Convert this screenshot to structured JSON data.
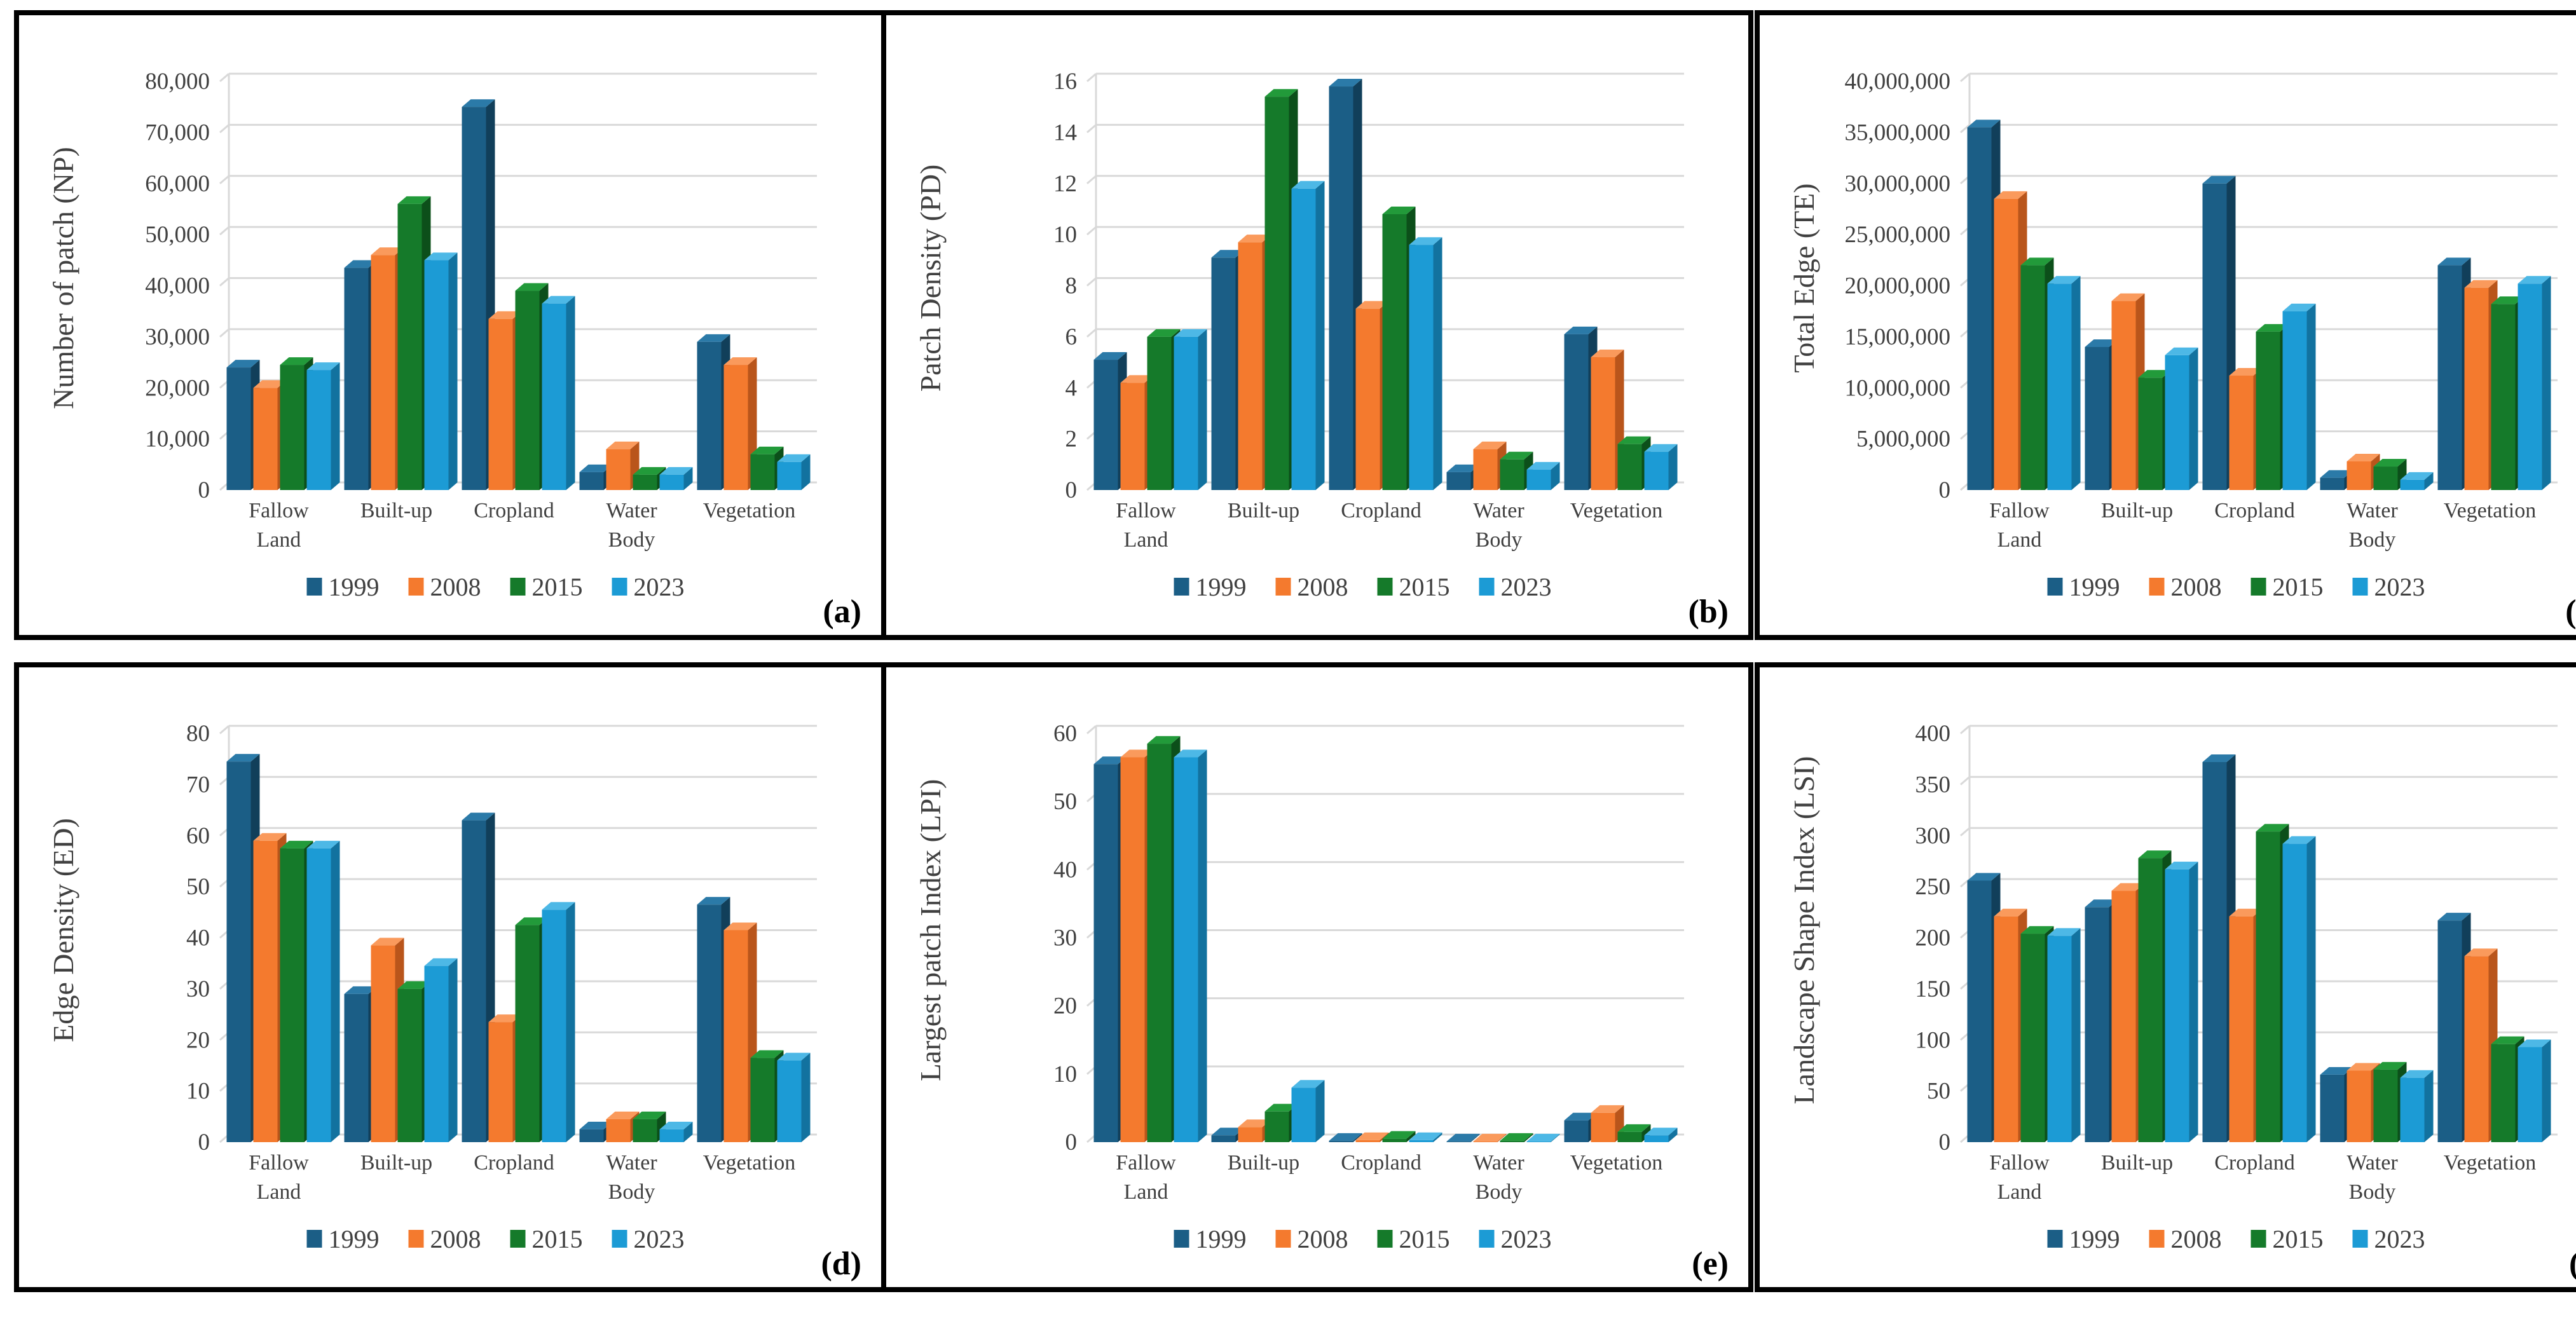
{
  "series_names": [
    "1999",
    "2008",
    "2015",
    "2023"
  ],
  "colors": {
    "1999": {
      "front": "#1B5E86",
      "side": "#113F5A",
      "top": "#2B7AA8"
    },
    "2008": {
      "front": "#F47A2E",
      "side": "#B9551B",
      "top": "#FA9A5C"
    },
    "2015": {
      "front": "#157A2A",
      "side": "#0C4F1A",
      "top": "#229A3A"
    },
    "2023": {
      "front": "#1C9BD5",
      "side": "#12729F",
      "top": "#4DB8E6"
    }
  },
  "chart_data": [
    {
      "type": "bar",
      "tag": "(a)",
      "ylabel": "Number of patch (NP)",
      "ylim": [
        0,
        80000
      ],
      "ytick_step": 10000,
      "yticks": [
        "0",
        "10,000",
        "20,000",
        "30,000",
        "40,000",
        "50,000",
        "60,000",
        "70,000",
        "80,000"
      ],
      "categories": [
        "Fallow Land",
        "Built-up",
        "Cropland",
        "Water Body",
        "Vegetation"
      ],
      "category_lines": [
        [
          "Fallow",
          "Land"
        ],
        [
          "Built-up"
        ],
        [
          "Cropland"
        ],
        [
          "Water",
          "Body"
        ],
        [
          "Vegetation"
        ]
      ],
      "series": [
        {
          "name": "1999",
          "values": [
            24000,
            43500,
            75000,
            3500,
            29000
          ]
        },
        {
          "name": "2008",
          "values": [
            20000,
            46000,
            33500,
            8000,
            24500
          ]
        },
        {
          "name": "2015",
          "values": [
            24500,
            56000,
            39000,
            3000,
            7000
          ]
        },
        {
          "name": "2023",
          "values": [
            23500,
            45000,
            36500,
            3000,
            5500
          ]
        }
      ]
    },
    {
      "type": "bar",
      "tag": "(b)",
      "ylabel": "Patch Density (PD)",
      "ylim": [
        0,
        16
      ],
      "ytick_step": 2,
      "yticks": [
        "0",
        "2",
        "4",
        "6",
        "8",
        "10",
        "12",
        "14",
        "16"
      ],
      "categories": [
        "Fallow Land",
        "Built-up",
        "Cropland",
        "Water Body",
        "Vegetation"
      ],
      "category_lines": [
        [
          "Fallow",
          "Land"
        ],
        [
          "Built-up"
        ],
        [
          "Cropland"
        ],
        [
          "Water",
          "Body"
        ],
        [
          "Vegetation"
        ]
      ],
      "series": [
        {
          "name": "1999",
          "values": [
            5.1,
            9.1,
            15.8,
            0.7,
            6.1
          ]
        },
        {
          "name": "2008",
          "values": [
            4.2,
            9.7,
            7.1,
            1.6,
            5.2
          ]
        },
        {
          "name": "2015",
          "values": [
            6.0,
            15.4,
            10.8,
            1.2,
            1.8
          ]
        },
        {
          "name": "2023",
          "values": [
            6.0,
            11.8,
            9.6,
            0.8,
            1.5
          ]
        }
      ]
    },
    {
      "type": "bar",
      "tag": "(c)",
      "ylabel": "Total Edge  (TE)",
      "ylim": [
        0,
        40000000
      ],
      "ytick_step": 5000000,
      "yticks": [
        "0",
        "5,000,000",
        "10,000,000",
        "15,000,000",
        "20,000,000",
        "25,000,000",
        "30,000,000",
        "35,000,000",
        "40,000,000"
      ],
      "categories": [
        "Fallow Land",
        "Built-up",
        "Cropland",
        "Water Body",
        "Vegetation"
      ],
      "category_lines": [
        [
          "Fallow",
          "Land"
        ],
        [
          "Built-up"
        ],
        [
          "Cropland"
        ],
        [
          "Water",
          "Body"
        ],
        [
          "Vegetation"
        ]
      ],
      "series": [
        {
          "name": "1999",
          "values": [
            35500000,
            14000000,
            30000000,
            1200000,
            22000000
          ]
        },
        {
          "name": "2008",
          "values": [
            28500000,
            18500000,
            11200000,
            2800000,
            19800000
          ]
        },
        {
          "name": "2015",
          "values": [
            22000000,
            11000000,
            15500000,
            2300000,
            18200000
          ]
        },
        {
          "name": "2023",
          "values": [
            20200000,
            13200000,
            17500000,
            1000000,
            20200000
          ]
        }
      ]
    },
    {
      "type": "bar",
      "tag": "(d)",
      "ylabel": "Edge Density (ED)",
      "ylim": [
        0,
        80
      ],
      "ytick_step": 10,
      "yticks": [
        "0",
        "10",
        "20",
        "30",
        "40",
        "50",
        "60",
        "70",
        "80"
      ],
      "categories": [
        "Fallow Land",
        "Built-up",
        "Cropland",
        "Water Body",
        "Vegetation"
      ],
      "category_lines": [
        [
          "Fallow",
          "Land"
        ],
        [
          "Built-up"
        ],
        [
          "Cropland"
        ],
        [
          "Water",
          "Body"
        ],
        [
          "Vegetation"
        ]
      ],
      "series": [
        {
          "name": "1999",
          "values": [
            74.5,
            29,
            63,
            2.5,
            46.5
          ]
        },
        {
          "name": "2008",
          "values": [
            59,
            38.5,
            23.5,
            4.5,
            41.5
          ]
        },
        {
          "name": "2015",
          "values": [
            57.5,
            30,
            42.5,
            4.5,
            16.5
          ]
        },
        {
          "name": "2023",
          "values": [
            57.5,
            34.5,
            45.5,
            2.5,
            16
          ]
        }
      ]
    },
    {
      "type": "bar",
      "tag": "(e)",
      "ylabel": "Largest patch Index (LPI)",
      "ylim": [
        0,
        60
      ],
      "ytick_step": 10,
      "yticks": [
        "0",
        "10",
        "20",
        "30",
        "40",
        "50",
        "60"
      ],
      "categories": [
        "Fallow Land",
        "Built-up",
        "Cropland",
        "Water Body",
        "Vegetation"
      ],
      "category_lines": [
        [
          "Fallow",
          "Land"
        ],
        [
          "Built-up"
        ],
        [
          "Cropland"
        ],
        [
          "Water",
          "Body"
        ],
        [
          "Vegetation"
        ]
      ],
      "series": [
        {
          "name": "1999",
          "values": [
            55.5,
            1.0,
            0.2,
            0.1,
            3.2
          ]
        },
        {
          "name": "2008",
          "values": [
            56.5,
            2.2,
            0.3,
            0.1,
            4.3
          ]
        },
        {
          "name": "2015",
          "values": [
            58.5,
            4.5,
            0.5,
            0.2,
            1.5
          ]
        },
        {
          "name": "2023",
          "values": [
            56.5,
            8.0,
            0.3,
            0.1,
            1.0
          ]
        }
      ]
    },
    {
      "type": "bar",
      "tag": "(f)",
      "ylabel": "Landscape Shape Index (LSI)",
      "ylim": [
        0,
        400
      ],
      "ytick_step": 50,
      "yticks": [
        "0",
        "50",
        "100",
        "150",
        "200",
        "250",
        "300",
        "350",
        "400"
      ],
      "categories": [
        "Fallow Land",
        "Built-up",
        "Cropland",
        "Water Body",
        "Vegetation"
      ],
      "category_lines": [
        [
          "Fallow",
          "Land"
        ],
        [
          "Built-up"
        ],
        [
          "Cropland"
        ],
        [
          "Water",
          "Body"
        ],
        [
          "Vegetation"
        ]
      ],
      "series": [
        {
          "name": "1999",
          "values": [
            256,
            230,
            372,
            66,
            217
          ]
        },
        {
          "name": "2008",
          "values": [
            221,
            246,
            221,
            70,
            182
          ]
        },
        {
          "name": "2015",
          "values": [
            204,
            278,
            304,
            71,
            96
          ]
        },
        {
          "name": "2023",
          "values": [
            202,
            267,
            292,
            63,
            93
          ]
        }
      ]
    }
  ]
}
